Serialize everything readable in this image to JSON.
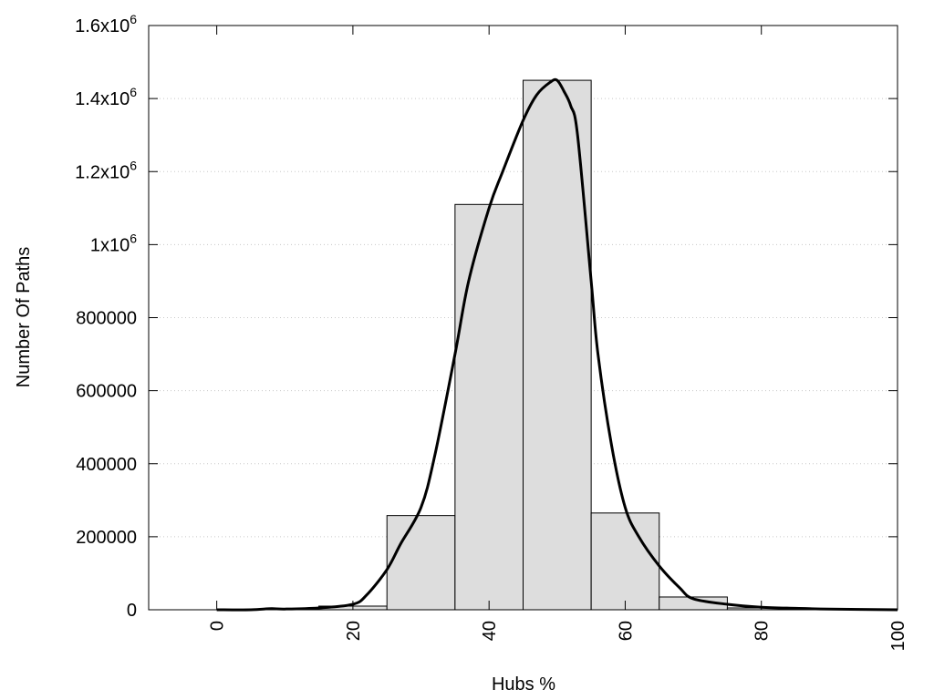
{
  "chart_data": {
    "type": "bar",
    "title": "",
    "xlabel": "Hubs %",
    "ylabel": "Number Of Paths",
    "xlim": [
      -10,
      100
    ],
    "ylim": [
      0,
      1600000
    ],
    "grid": "horizontal dotted",
    "bar_color": "#dddddd",
    "line_color": "#000000",
    "x_ticks": [
      {
        "value": 0,
        "label": "0"
      },
      {
        "value": 20,
        "label": "20"
      },
      {
        "value": 40,
        "label": "40"
      },
      {
        "value": 60,
        "label": "60"
      },
      {
        "value": 80,
        "label": "80"
      },
      {
        "value": 100,
        "label": "100"
      }
    ],
    "y_ticks": [
      {
        "value": 0,
        "label": "0",
        "exp": ""
      },
      {
        "value": 200000,
        "label": "200000",
        "exp": ""
      },
      {
        "value": 400000,
        "label": "400000",
        "exp": ""
      },
      {
        "value": 600000,
        "label": "600000",
        "exp": ""
      },
      {
        "value": 800000,
        "label": "800000",
        "exp": ""
      },
      {
        "value": 1000000,
        "label": "1x10",
        "exp": "6"
      },
      {
        "value": 1200000,
        "label": "1.2x10",
        "exp": "6"
      },
      {
        "value": 1400000,
        "label": "1.4x10",
        "exp": "6"
      },
      {
        "value": 1600000,
        "label": "1.6x10",
        "exp": "6"
      }
    ],
    "bars": [
      {
        "x0": 5,
        "x1": 15,
        "value": 2000
      },
      {
        "x0": 15,
        "x1": 25,
        "value": 10000
      },
      {
        "x0": 25,
        "x1": 35,
        "value": 258000
      },
      {
        "x0": 35,
        "x1": 45,
        "value": 1110000
      },
      {
        "x0": 45,
        "x1": 55,
        "value": 1450000
      },
      {
        "x0": 55,
        "x1": 65,
        "value": 265000
      },
      {
        "x0": 65,
        "x1": 75,
        "value": 35000
      },
      {
        "x0": 75,
        "x1": 85,
        "value": 5000
      }
    ],
    "curve": {
      "x": [
        0,
        5,
        8,
        10,
        15,
        20,
        22,
        25,
        27,
        30,
        32,
        35,
        37,
        40,
        42,
        45,
        47,
        49,
        50,
        51,
        52,
        53,
        55,
        56,
        58,
        60,
        62,
        65,
        68,
        70,
        75,
        80,
        85,
        90,
        100
      ],
      "y": [
        0,
        0,
        3000,
        2000,
        5000,
        15000,
        40000,
        110000,
        180000,
        280000,
        420000,
        700000,
        900000,
        1100000,
        1200000,
        1340000,
        1410000,
        1445000,
        1450000,
        1420000,
        1380000,
        1300000,
        900000,
        700000,
        450000,
        280000,
        200000,
        120000,
        60000,
        30000,
        15000,
        7000,
        4000,
        2000,
        0
      ]
    }
  }
}
